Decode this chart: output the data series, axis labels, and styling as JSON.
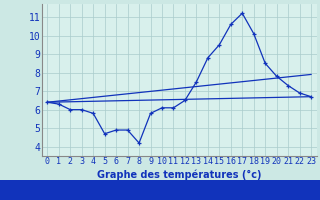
{
  "xlabel": "Graphe des températures (°c)",
  "background_color": "#cce8e4",
  "plot_bg_color": "#d8f0ec",
  "grid_color": "#aacccc",
  "line_color": "#1133bb",
  "axis_bar_color": "#1133bb",
  "x_ticks": [
    0,
    1,
    2,
    3,
    4,
    5,
    6,
    7,
    8,
    9,
    10,
    11,
    12,
    13,
    14,
    15,
    16,
    17,
    18,
    19,
    20,
    21,
    22,
    23
  ],
  "y_ticks": [
    4,
    5,
    6,
    7,
    8,
    9,
    10,
    11
  ],
  "ylim": [
    3.5,
    11.7
  ],
  "xlim": [
    -0.5,
    23.5
  ],
  "line1_x": [
    0,
    1,
    2,
    3,
    4,
    5,
    6,
    7,
    8,
    9,
    10,
    11,
    12,
    13,
    14,
    15,
    16,
    17,
    18,
    19,
    20,
    21,
    22,
    23
  ],
  "line1_y": [
    6.4,
    6.3,
    6.0,
    6.0,
    5.8,
    4.7,
    4.9,
    4.9,
    4.2,
    5.8,
    6.1,
    6.1,
    6.5,
    7.5,
    8.8,
    9.5,
    10.6,
    11.2,
    10.1,
    8.5,
    7.8,
    7.3,
    6.9,
    6.7
  ],
  "line2_x": [
    0,
    23
  ],
  "line2_y": [
    6.4,
    6.7
  ],
  "line3_x": [
    0,
    23
  ],
  "line3_y": [
    6.4,
    7.9
  ],
  "xlabel_fontsize": 7,
  "tick_fontsize": 6,
  "ytick_fontsize": 7
}
